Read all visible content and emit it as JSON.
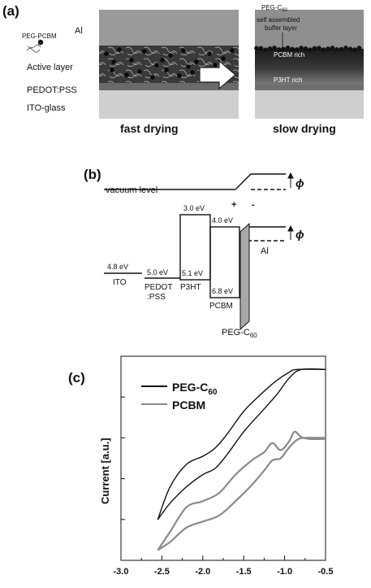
{
  "panel_a": {
    "label": "(a)",
    "layers": {
      "al": "Al",
      "active": "Active layer",
      "pedot": "PEDOT:PSS",
      "ito": "ITO-glass"
    },
    "legend": "PEG-PCBM",
    "fast_caption": "fast drying",
    "slow_caption": "slow drying",
    "annotations": {
      "peg_c60_prefix": "PEG-C",
      "peg_c60_sub": "60",
      "buffer_line1": "self assembled",
      "buffer_line2": "buffer layer",
      "pcbm_rich": "PCBM rich",
      "p3ht_rich": "P3HT rich"
    }
  },
  "panel_b": {
    "label": "(b)",
    "vacuum": "vacuum level",
    "phi": "ϕ",
    "plus": "+",
    "minus": "-",
    "levels": {
      "ito": {
        "name": "ITO",
        "value": "4.8 eV"
      },
      "pedot": {
        "name_line1": "PEDOT",
        "name_line2": ":PSS",
        "value": "5.0 eV"
      },
      "p3ht": {
        "name": "P3HT",
        "lumo": "3.0 eV",
        "homo": "5.1 eV"
      },
      "pcbm": {
        "name": "PCBM",
        "lumo": "4.0 eV",
        "homo": "6.8 eV"
      },
      "al": {
        "name": "Al"
      },
      "peg": {
        "prefix": "PEG-C",
        "sub": "60"
      }
    }
  },
  "panel_c": {
    "label": "(c)",
    "ylabel": "Current [a.u.]",
    "legend": [
      {
        "prefix": "PEG-C",
        "sub": "60",
        "color": "#111111"
      },
      {
        "prefix": "PCBM",
        "sub": "",
        "color": "#8a8a8a"
      }
    ],
    "chart_data": {
      "type": "line",
      "xlim": [
        -3.0,
        -0.5
      ],
      "x_ticks": [
        "-3.0",
        "-2.5",
        "-2.0",
        "-1.5",
        "-1.0",
        "-0.5"
      ],
      "ylim": [
        0,
        10
      ],
      "ylabel": "Current [a.u.]",
      "series": [
        {
          "name": "PEG-C60",
          "color": "#111111",
          "forward": [
            [
              -2.55,
              2.0
            ],
            [
              -2.4,
              3.6
            ],
            [
              -2.2,
              4.7
            ],
            [
              -2.0,
              5.1
            ],
            [
              -1.85,
              5.5
            ],
            [
              -1.7,
              6.2
            ],
            [
              -1.5,
              7.3
            ],
            [
              -1.3,
              8.1
            ],
            [
              -1.1,
              8.8
            ],
            [
              -0.95,
              9.2
            ],
            [
              -0.85,
              9.35
            ],
            [
              -0.5,
              9.35
            ]
          ],
          "reverse": [
            [
              -2.55,
              2.0
            ],
            [
              -2.4,
              2.8
            ],
            [
              -2.2,
              3.6
            ],
            [
              -2.0,
              4.2
            ],
            [
              -1.85,
              4.5
            ],
            [
              -1.7,
              5.2
            ],
            [
              -1.5,
              6.3
            ],
            [
              -1.3,
              7.2
            ],
            [
              -1.1,
              8.1
            ],
            [
              -0.95,
              8.9
            ],
            [
              -0.8,
              9.35
            ],
            [
              -0.5,
              9.35
            ]
          ]
        },
        {
          "name": "PCBM",
          "color": "#8a8a8a",
          "forward": [
            [
              -2.55,
              0.5
            ],
            [
              -2.4,
              1.4
            ],
            [
              -2.2,
              2.6
            ],
            [
              -2.0,
              2.9
            ],
            [
              -1.8,
              3.3
            ],
            [
              -1.6,
              4.2
            ],
            [
              -1.4,
              4.9
            ],
            [
              -1.25,
              5.3
            ],
            [
              -1.15,
              5.75
            ],
            [
              -1.05,
              5.4
            ],
            [
              -0.95,
              5.8
            ],
            [
              -0.88,
              6.3
            ],
            [
              -0.8,
              6.05
            ],
            [
              -0.7,
              5.95
            ],
            [
              -0.5,
              5.95
            ]
          ],
          "reverse": [
            [
              -2.55,
              0.5
            ],
            [
              -2.4,
              0.9
            ],
            [
              -2.2,
              1.6
            ],
            [
              -2.0,
              1.9
            ],
            [
              -1.8,
              2.2
            ],
            [
              -1.6,
              2.9
            ],
            [
              -1.4,
              3.7
            ],
            [
              -1.25,
              4.4
            ],
            [
              -1.15,
              4.9
            ],
            [
              -1.05,
              5.0
            ],
            [
              -0.95,
              5.5
            ],
            [
              -0.85,
              5.9
            ],
            [
              -0.75,
              6.0
            ],
            [
              -0.5,
              6.0
            ]
          ]
        }
      ]
    }
  }
}
